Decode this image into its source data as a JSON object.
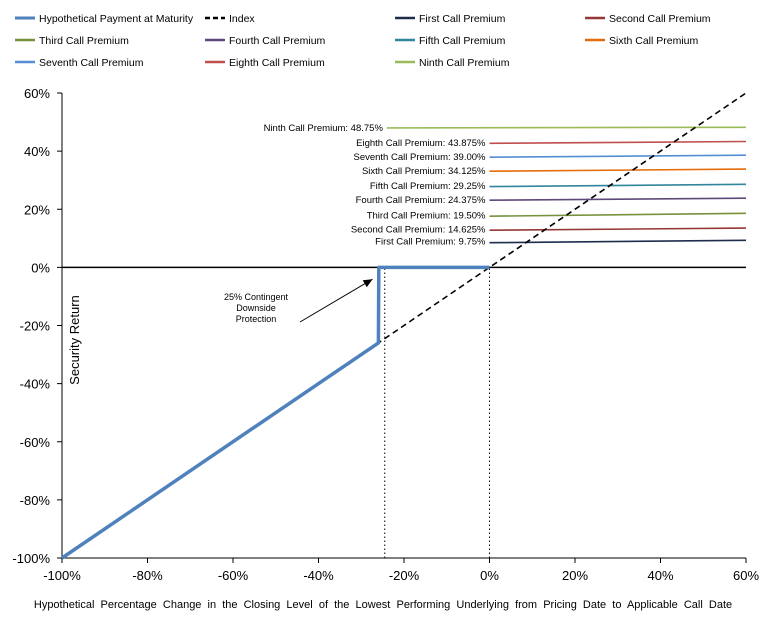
{
  "chart_data": {
    "type": "line",
    "xlabel": "Hypothetical  Percentage  Change  in  the  Closing  Level  of  the  Lowest  Performing  Underlying  from  Pricing  Date  to  Applicable  Call  Date",
    "ylabel": "Security Return",
    "xlim": [
      -100,
      60
    ],
    "ylim": [
      -100,
      60
    ],
    "x_ticks": [
      "-100%",
      "-80%",
      "-60%",
      "-40%",
      "-20%",
      "0%",
      "20%",
      "40%",
      "60%"
    ],
    "y_ticks": [
      "60%",
      "40%",
      "20%",
      "0%",
      "-20%",
      "-40%",
      "-60%",
      "-80%",
      "-100%"
    ],
    "legend_position": "top",
    "grid": false,
    "series": [
      {
        "name": "Hypothetical Payment at Maturity",
        "color": "#4f81bd",
        "style": "solid",
        "x": [
          -100,
          -26,
          -25.9,
          -25,
          0
        ],
        "y": [
          -100,
          -26,
          0,
          0,
          0
        ]
      },
      {
        "name": "Index",
        "color": "#000000",
        "style": "dashed",
        "x": [
          -100,
          60
        ],
        "y": [
          -100,
          60
        ]
      },
      {
        "name": "First Call Premium",
        "color": "#1f2d4d",
        "style": "solid",
        "x": [
          0,
          60
        ],
        "y": [
          8.5,
          9.3
        ]
      },
      {
        "name": "Second Call Premium",
        "color": "#953735",
        "style": "solid",
        "x": [
          0,
          60
        ],
        "y": [
          12.8,
          13.5
        ]
      },
      {
        "name": "Third Call Premium",
        "color": "#76923c",
        "style": "solid",
        "x": [
          0,
          60
        ],
        "y": [
          17.6,
          18.6
        ]
      },
      {
        "name": "Fourth Call Premium",
        "color": "#5f497a",
        "style": "solid",
        "x": [
          0,
          60
        ],
        "y": [
          23.1,
          23.8
        ]
      },
      {
        "name": "Fifth Call Premium",
        "color": "#31859c",
        "style": "solid",
        "x": [
          0,
          60
        ],
        "y": [
          27.8,
          28.6
        ]
      },
      {
        "name": "Sixth Call Premium",
        "color": "#e46c0a",
        "style": "solid",
        "x": [
          0,
          60
        ],
        "y": [
          33.1,
          33.8
        ]
      },
      {
        "name": "Seventh Call Premium",
        "color": "#558ed5",
        "style": "solid",
        "x": [
          0,
          60
        ],
        "y": [
          37.9,
          38.6
        ]
      },
      {
        "name": "Eighth Call Premium",
        "color": "#c0504d",
        "style": "solid",
        "x": [
          0,
          60
        ],
        "y": [
          42.7,
          43.3
        ]
      },
      {
        "name": "Ninth Call Premium",
        "color": "#9bbb59",
        "style": "solid",
        "x": [
          -24,
          60
        ],
        "y": [
          48.0,
          48.2
        ]
      }
    ],
    "reference_lines": [
      {
        "orientation": "vertical",
        "x": -24.5,
        "y_from": -100,
        "y_to": 0,
        "style": "dotted"
      },
      {
        "orientation": "vertical",
        "x": 0,
        "y_from": -100,
        "y_to": 0,
        "style": "dotted"
      }
    ],
    "premium_labels": [
      {
        "text": "Ninth Call Premium: 48.75%",
        "x": -24,
        "y": 48.1
      },
      {
        "text": "Eighth Call Premium: 43.875%",
        "x": 0,
        "y": 43.0
      },
      {
        "text": "Seventh Call Premium: 39.00%",
        "x": 0,
        "y": 38.2
      },
      {
        "text": "Sixth Call Premium: 34.125%",
        "x": 0,
        "y": 33.4
      },
      {
        "text": "Fifth Call Premium: 29.25%",
        "x": 0,
        "y": 28.2
      },
      {
        "text": "Fourth Call Premium: 24.375%",
        "x": 0,
        "y": 23.4
      },
      {
        "text": "Third Call Premium: 19.50%",
        "x": 0,
        "y": 18.1
      },
      {
        "text": "Second Call Premium: 14.625%",
        "x": 0,
        "y": 13.2
      },
      {
        "text": "First Call Premium: 9.75%",
        "x": 0,
        "y": 9.0
      }
    ],
    "annotation": {
      "lines": [
        "25% Contingent",
        "Downside",
        "Protection"
      ],
      "arrow_to": {
        "x": -25.5,
        "y": -2
      }
    }
  }
}
